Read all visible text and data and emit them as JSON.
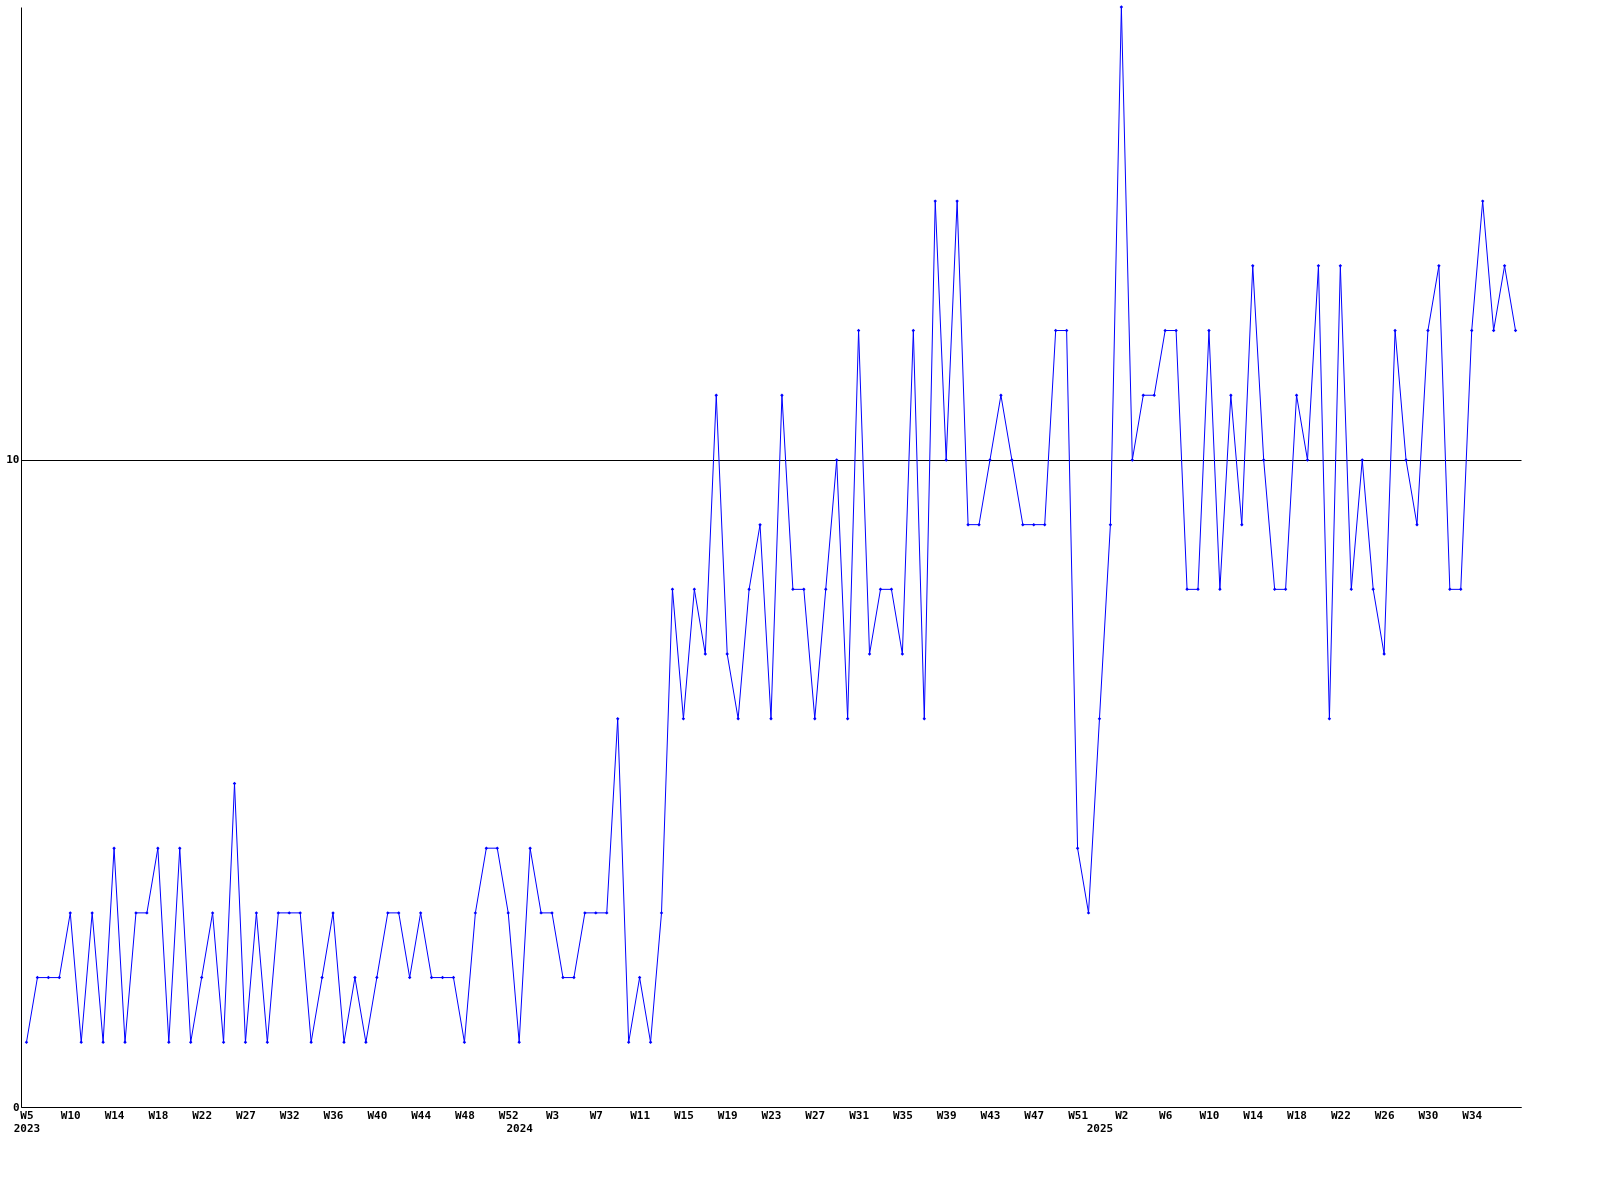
{
  "chart_data": {
    "type": "line",
    "categories": [
      "W5\n2023",
      null,
      null,
      null,
      "W10",
      null,
      null,
      null,
      "W14",
      null,
      null,
      null,
      "W18",
      null,
      null,
      null,
      "W22",
      null,
      null,
      null,
      "W27",
      null,
      null,
      null,
      "W32",
      null,
      null,
      null,
      "W36",
      null,
      null,
      null,
      "W40",
      null,
      null,
      null,
      "W44",
      null,
      null,
      null,
      "W48",
      null,
      null,
      null,
      "W52",
      "\n2024",
      null,
      null,
      "W3",
      null,
      null,
      null,
      "W7",
      null,
      null,
      null,
      "W11",
      null,
      null,
      null,
      "W15",
      null,
      null,
      null,
      "W19",
      null,
      null,
      null,
      "W23",
      null,
      null,
      null,
      "W27",
      null,
      null,
      null,
      "W31",
      null,
      null,
      null,
      "W35",
      null,
      null,
      null,
      "W39",
      null,
      null,
      null,
      "W43",
      null,
      null,
      null,
      "W47",
      null,
      null,
      null,
      "W51",
      null,
      "\n2025",
      null,
      "W2",
      null,
      null,
      null,
      "W6",
      null,
      null,
      null,
      "W10",
      null,
      null,
      null,
      "W14",
      null,
      null,
      null,
      "W18",
      null,
      null,
      null,
      "W22",
      null,
      null,
      null,
      "W26",
      null,
      null,
      null,
      "W30",
      null,
      null,
      null,
      "W34",
      null,
      null,
      null,
      null
    ],
    "series": [
      {
        "color": "#0000ff",
        "values": [
          1,
          2,
          2,
          2,
          3,
          1,
          3,
          1,
          4,
          1,
          3,
          3,
          4,
          1,
          4,
          1,
          2,
          3,
          1,
          5,
          1,
          3,
          1,
          3,
          3,
          3,
          1,
          2,
          3,
          1,
          2,
          1,
          2,
          3,
          3,
          2,
          3,
          2,
          2,
          2,
          1,
          3,
          4,
          4,
          3,
          1,
          4,
          3,
          3,
          2,
          2,
          3,
          3,
          3,
          6,
          1,
          2,
          1,
          3,
          8,
          6,
          8,
          7,
          11,
          7,
          6,
          8,
          9,
          6,
          11,
          8,
          8,
          6,
          8,
          10,
          6,
          12,
          7,
          8,
          8,
          7,
          12,
          6,
          14,
          10,
          14,
          9,
          9,
          10,
          11,
          10,
          9,
          9,
          9,
          12,
          12,
          4,
          3,
          6,
          9,
          17,
          10,
          11,
          11,
          12,
          12,
          8,
          8,
          12,
          8,
          11,
          9,
          13,
          10,
          8,
          8,
          11,
          10,
          13,
          6,
          13,
          8,
          10,
          8,
          7,
          12,
          10,
          9,
          12,
          13,
          8,
          8,
          12,
          14,
          12,
          13,
          12
        ]
      }
    ],
    "ylim": [
      0,
      17
    ],
    "yticks": [
      0,
      10
    ],
    "grid": "y",
    "marker": "diamond",
    "line_style": "solid",
    "legend": false
  }
}
